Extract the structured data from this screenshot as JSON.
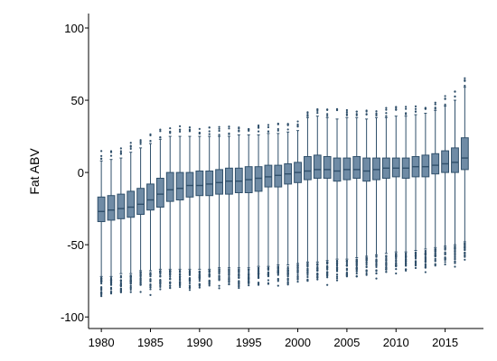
{
  "chart_data": {
    "type": "box",
    "title": "",
    "xlabel": "",
    "ylabel": "Fat ABV",
    "ylim": [
      -108,
      110
    ],
    "xlim": [
      1978.7,
      2018.9
    ],
    "grid": false,
    "x_ticks": [
      1980,
      1985,
      1990,
      1995,
      2000,
      2005,
      2010,
      2015
    ],
    "y_ticks": [
      100,
      50,
      0,
      -50,
      -100
    ],
    "colors": {
      "box_fill": "#6f8ba5",
      "box_stroke": "#2f4f6a",
      "whisker": "#2f4f6a",
      "outlier": "#2f4f6a"
    },
    "boxes": [
      {
        "year": 1980,
        "low": -72,
        "q1": -34,
        "median": -27,
        "q3": -17,
        "high": 8
      },
      {
        "year": 1981,
        "low": -72,
        "q1": -33,
        "median": -26,
        "q3": -16,
        "high": 9
      },
      {
        "year": 1982,
        "low": -70,
        "q1": -32,
        "median": -25,
        "q3": -15,
        "high": 10
      },
      {
        "year": 1983,
        "low": -70,
        "q1": -31,
        "median": -24,
        "q3": -13,
        "high": 14
      },
      {
        "year": 1984,
        "low": -68,
        "q1": -29,
        "median": -22,
        "q3": -11,
        "high": 17
      },
      {
        "year": 1985,
        "low": -68,
        "q1": -26,
        "median": -19,
        "q3": -8,
        "high": 20
      },
      {
        "year": 1986,
        "low": -67,
        "q1": -24,
        "median": -15,
        "q3": -4,
        "high": 23
      },
      {
        "year": 1987,
        "low": -67,
        "q1": -20,
        "median": -12,
        "q3": 0,
        "high": 25
      },
      {
        "year": 1988,
        "low": -67,
        "q1": -19,
        "median": -11,
        "q3": 0,
        "high": 25
      },
      {
        "year": 1989,
        "low": -67,
        "q1": -17,
        "median": -9,
        "q3": 0,
        "high": 25
      },
      {
        "year": 1990,
        "low": -67,
        "q1": -16,
        "median": -9,
        "q3": 1,
        "high": 25
      },
      {
        "year": 1991,
        "low": -67,
        "q1": -16,
        "median": -8,
        "q3": 1,
        "high": 25
      },
      {
        "year": 1992,
        "low": -66,
        "q1": -15,
        "median": -7,
        "q3": 2,
        "high": 25
      },
      {
        "year": 1993,
        "low": -66,
        "q1": -15,
        "median": -6,
        "q3": 3,
        "high": 25
      },
      {
        "year": 1994,
        "low": -66,
        "q1": -14,
        "median": -6,
        "q3": 3,
        "high": 26
      },
      {
        "year": 1995,
        "low": -66,
        "q1": -14,
        "median": -5,
        "q3": 4,
        "high": 26
      },
      {
        "year": 1996,
        "low": -65,
        "q1": -13,
        "median": -4,
        "q3": 4,
        "high": 26
      },
      {
        "year": 1997,
        "low": -65,
        "q1": -10,
        "median": -3,
        "q3": 5,
        "high": 27
      },
      {
        "year": 1998,
        "low": -64,
        "q1": -10,
        "median": -2,
        "q3": 5,
        "high": 27
      },
      {
        "year": 1999,
        "low": -64,
        "q1": -8,
        "median": -1,
        "q3": 6,
        "high": 28
      },
      {
        "year": 2000,
        "low": -63,
        "q1": -7,
        "median": 0,
        "q3": 7,
        "high": 29
      },
      {
        "year": 2001,
        "low": -62,
        "q1": -5,
        "median": 1,
        "q3": 11,
        "high": 38
      },
      {
        "year": 2002,
        "low": -62,
        "q1": -4,
        "median": 2,
        "q3": 12,
        "high": 39
      },
      {
        "year": 2003,
        "low": -61,
        "q1": -4,
        "median": 2,
        "q3": 11,
        "high": 38
      },
      {
        "year": 2004,
        "low": -60,
        "q1": -6,
        "median": 1,
        "q3": 10,
        "high": 37
      },
      {
        "year": 2005,
        "low": -60,
        "q1": -5,
        "median": 2,
        "q3": 10,
        "high": 38
      },
      {
        "year": 2006,
        "low": -59,
        "q1": -4,
        "median": 2,
        "q3": 11,
        "high": 38
      },
      {
        "year": 2007,
        "low": -58,
        "q1": -6,
        "median": 1,
        "q3": 10,
        "high": 37
      },
      {
        "year": 2008,
        "low": -57,
        "q1": -5,
        "median": 2,
        "q3": 10,
        "high": 38
      },
      {
        "year": 2009,
        "low": -56,
        "q1": -4,
        "median": 3,
        "q3": 10,
        "high": 38
      },
      {
        "year": 2010,
        "low": -55,
        "q1": -3,
        "median": 3,
        "q3": 10,
        "high": 39
      },
      {
        "year": 2011,
        "low": -55,
        "q1": -4,
        "median": 3,
        "q3": 10,
        "high": 39
      },
      {
        "year": 2012,
        "low": -54,
        "q1": -3,
        "median": 4,
        "q3": 11,
        "high": 40
      },
      {
        "year": 2013,
        "low": -53,
        "q1": -3,
        "median": 4,
        "q3": 12,
        "high": 41
      },
      {
        "year": 2014,
        "low": -52,
        "q1": -1,
        "median": 5,
        "q3": 13,
        "high": 43
      },
      {
        "year": 2015,
        "low": -51,
        "q1": 0,
        "median": 6,
        "q3": 15,
        "high": 46
      },
      {
        "year": 2016,
        "low": -50,
        "q1": 0,
        "median": 7,
        "q3": 17,
        "high": 50
      },
      {
        "year": 2017,
        "low": -48,
        "q1": 2,
        "median": 10,
        "q3": 24,
        "high": 59
      }
    ]
  }
}
